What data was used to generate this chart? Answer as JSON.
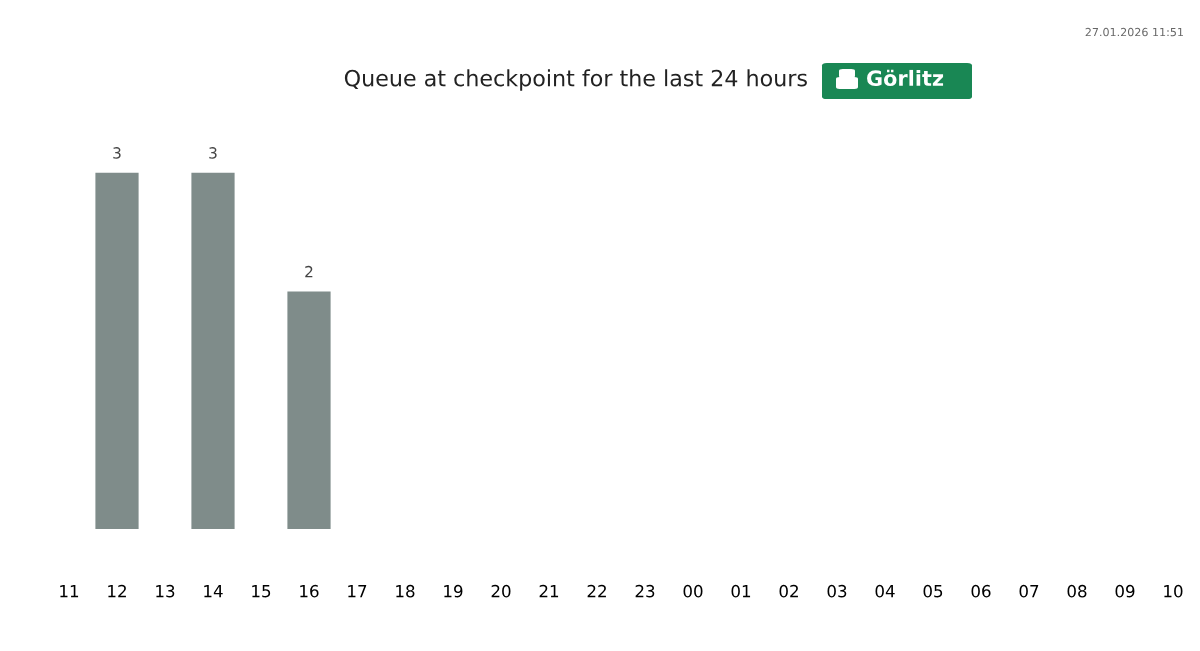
{
  "chart_data": {
    "type": "bar",
    "title": "Queue at checkpoint for the last 24 hours",
    "subtitle": "Görlitz",
    "categories": [
      "11",
      "12",
      "13",
      "14",
      "15",
      "16",
      "17",
      "18",
      "19",
      "20",
      "21",
      "22",
      "23",
      "00",
      "01",
      "02",
      "03",
      "04",
      "05",
      "06",
      "07",
      "08",
      "09",
      "10"
    ],
    "values": [
      null,
      3,
      null,
      3,
      null,
      2,
      null,
      null,
      null,
      null,
      null,
      null,
      null,
      null,
      null,
      null,
      null,
      null,
      null,
      null,
      null,
      null,
      null,
      null
    ],
    "color": "#7f8c8a",
    "data_labels": true,
    "tick_labels": "x",
    "grid": false,
    "legend": false,
    "annotations": [
      "27.01.2026 11:51"
    ]
  }
}
